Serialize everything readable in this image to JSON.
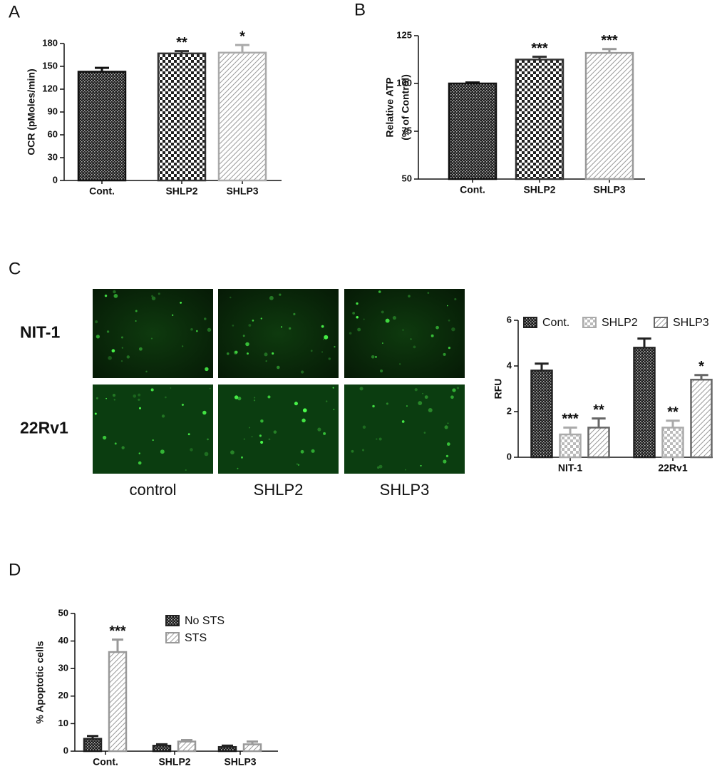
{
  "chart_data": [
    {
      "type": "bar",
      "panel": "A",
      "ylabel": "OCR  (pMoles/min)",
      "categories": [
        "Cont.",
        "SHLP2",
        "SHLP3"
      ],
      "values": [
        143,
        167,
        168
      ],
      "errors": [
        5,
        3,
        10
      ],
      "annotations": [
        null,
        "**",
        "*"
      ],
      "patterns": [
        "dense",
        "checker",
        "hatch"
      ],
      "colors": [
        "#111111",
        "#333333",
        "#aaaaaa"
      ],
      "ylim": [
        0,
        180
      ],
      "yticks": [
        0,
        30,
        60,
        90,
        120,
        150,
        180
      ]
    },
    {
      "type": "bar",
      "panel": "B",
      "ylabel": [
        "Relative ATP",
        "(% of Control)"
      ],
      "categories": [
        "Cont.",
        "SHLP2",
        "SHLP3"
      ],
      "values": [
        100,
        112.5,
        116
      ],
      "errors": [
        0.5,
        1.5,
        2
      ],
      "annotations": [
        null,
        "***",
        "***"
      ],
      "patterns": [
        "dense",
        "checker",
        "hatch"
      ],
      "colors": [
        "#111111",
        "#333333",
        "#999999"
      ],
      "ylim": [
        50,
        125
      ],
      "yticks": [
        50,
        75,
        100,
        125
      ]
    },
    {
      "type": "grouped-bar",
      "panel": "C",
      "ylabel": "RFU",
      "micrographs": {
        "rows": [
          "NIT-1",
          "22Rv1"
        ],
        "columns": [
          "control",
          "SHLP2",
          "SHLP3"
        ]
      },
      "categories": [
        "NIT-1",
        "22Rv1"
      ],
      "series": [
        {
          "name": "Cont.",
          "pattern": "dense",
          "color": "#222222",
          "values": [
            3.8,
            4.8
          ],
          "errors": [
            0.3,
            0.4
          ],
          "annotations": [
            null,
            null
          ]
        },
        {
          "name": "SHLP2",
          "pattern": "checker-light",
          "color": "#aaaaaa",
          "values": [
            1.0,
            1.3
          ],
          "errors": [
            0.3,
            0.3
          ],
          "annotations": [
            "***",
            "**"
          ]
        },
        {
          "name": "SHLP3",
          "pattern": "hatch",
          "color": "#666666",
          "values": [
            1.3,
            3.4
          ],
          "errors": [
            0.4,
            0.2
          ],
          "annotations": [
            "**",
            "*"
          ]
        }
      ],
      "ylim": [
        0,
        6
      ],
      "yticks": [
        0,
        2,
        4,
        6
      ]
    },
    {
      "type": "grouped-bar",
      "panel": "D",
      "ylabel": "% Apoptotic cells",
      "categories": [
        "Cont.",
        "SHLP2",
        "SHLP3"
      ],
      "series": [
        {
          "name": "No STS",
          "pattern": "dense",
          "color": "#222222",
          "values": [
            4.5,
            2,
            1.5
          ],
          "errors": [
            1,
            0.5,
            0.5
          ],
          "annotations": [
            null,
            null,
            null
          ]
        },
        {
          "name": "STS",
          "pattern": "hatch",
          "color": "#999999",
          "values": [
            36,
            3.5,
            2.5
          ],
          "errors": [
            4.5,
            0.5,
            1
          ],
          "annotations": [
            "***",
            null,
            null
          ]
        }
      ],
      "ylim": [
        0,
        50
      ],
      "yticks": [
        0,
        10,
        20,
        30,
        40,
        50
      ]
    }
  ]
}
